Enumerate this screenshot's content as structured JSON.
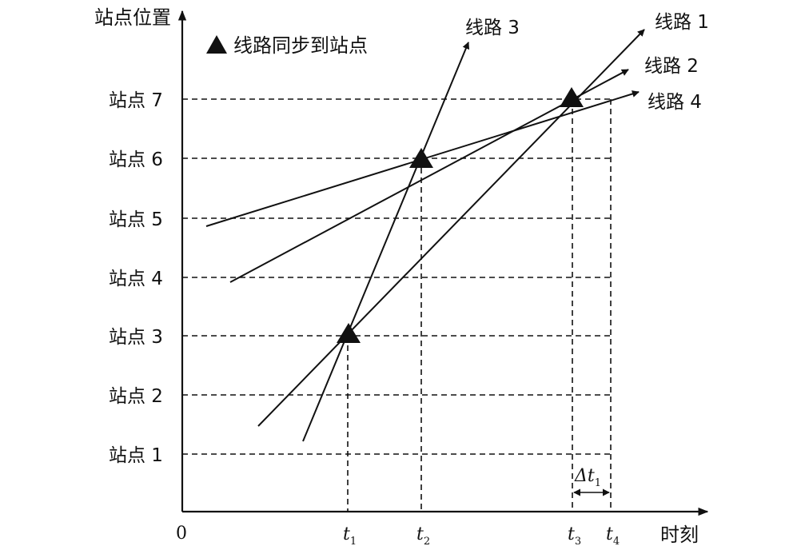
{
  "y_axis_title": "站点位置",
  "x_axis_title": "时刻",
  "origin_label": "0",
  "legend_text": "线路同步到站点",
  "stations": [
    "站点 1",
    "站点 2",
    "站点 3",
    "站点 4",
    "站点 5",
    "站点 6",
    "站点 7"
  ],
  "routes": [
    "线路 1",
    "线路 2",
    "线路 3",
    "线路 4"
  ],
  "time_marks": [
    {
      "base": "t",
      "sub": "1"
    },
    {
      "base": "t",
      "sub": "2"
    },
    {
      "base": "t",
      "sub": "3"
    },
    {
      "base": "t",
      "sub": "4"
    }
  ],
  "delta": {
    "base": "Δt",
    "sub": "1"
  }
}
